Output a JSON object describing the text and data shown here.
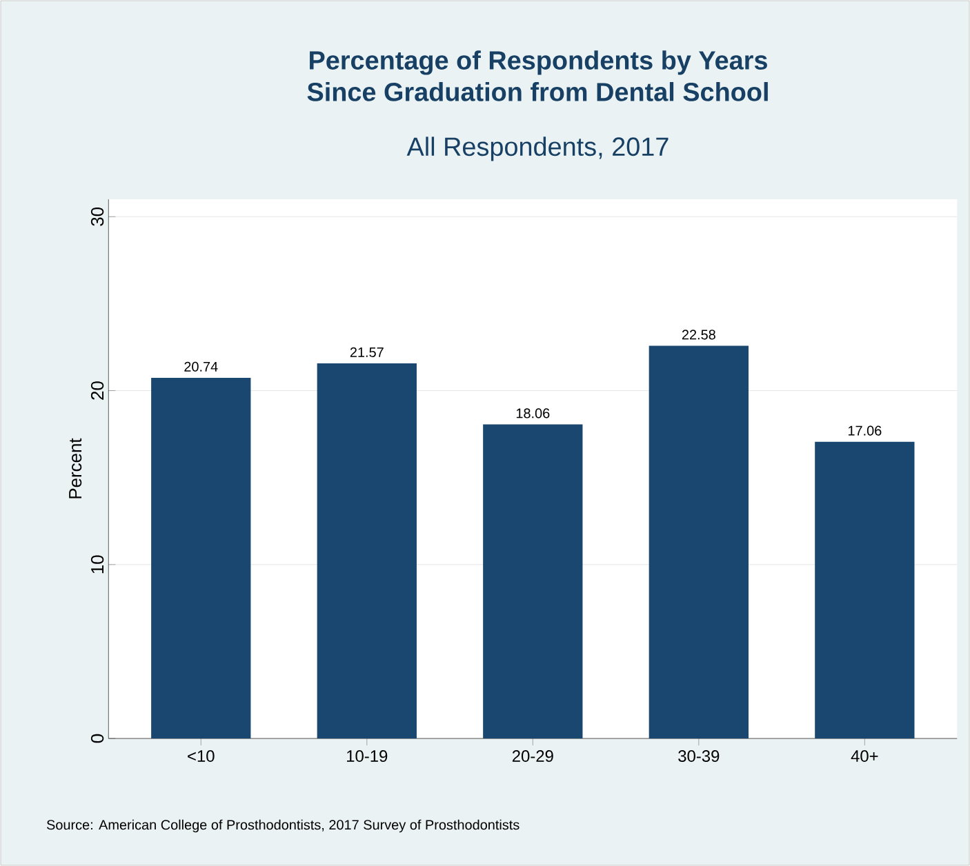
{
  "chart_data": {
    "type": "bar",
    "title": "Percentage of Respondents by Years\nSince Graduation from Dental School",
    "subtitle": "All Respondents, 2017",
    "ylabel": "Percent",
    "categories": [
      "<10",
      "10-19",
      "20-29",
      "30-39",
      "40+"
    ],
    "values": [
      20.74,
      21.57,
      18.06,
      22.58,
      17.06
    ],
    "color": "#1a476f",
    "ylim": [
      0,
      31
    ],
    "yticks": [
      0,
      10,
      20,
      30
    ],
    "grid": "y",
    "data_labels": true,
    "annotations": [
      "Source: American College of Prosthodontists, 2017 Survey of Prosthodontists"
    ]
  }
}
